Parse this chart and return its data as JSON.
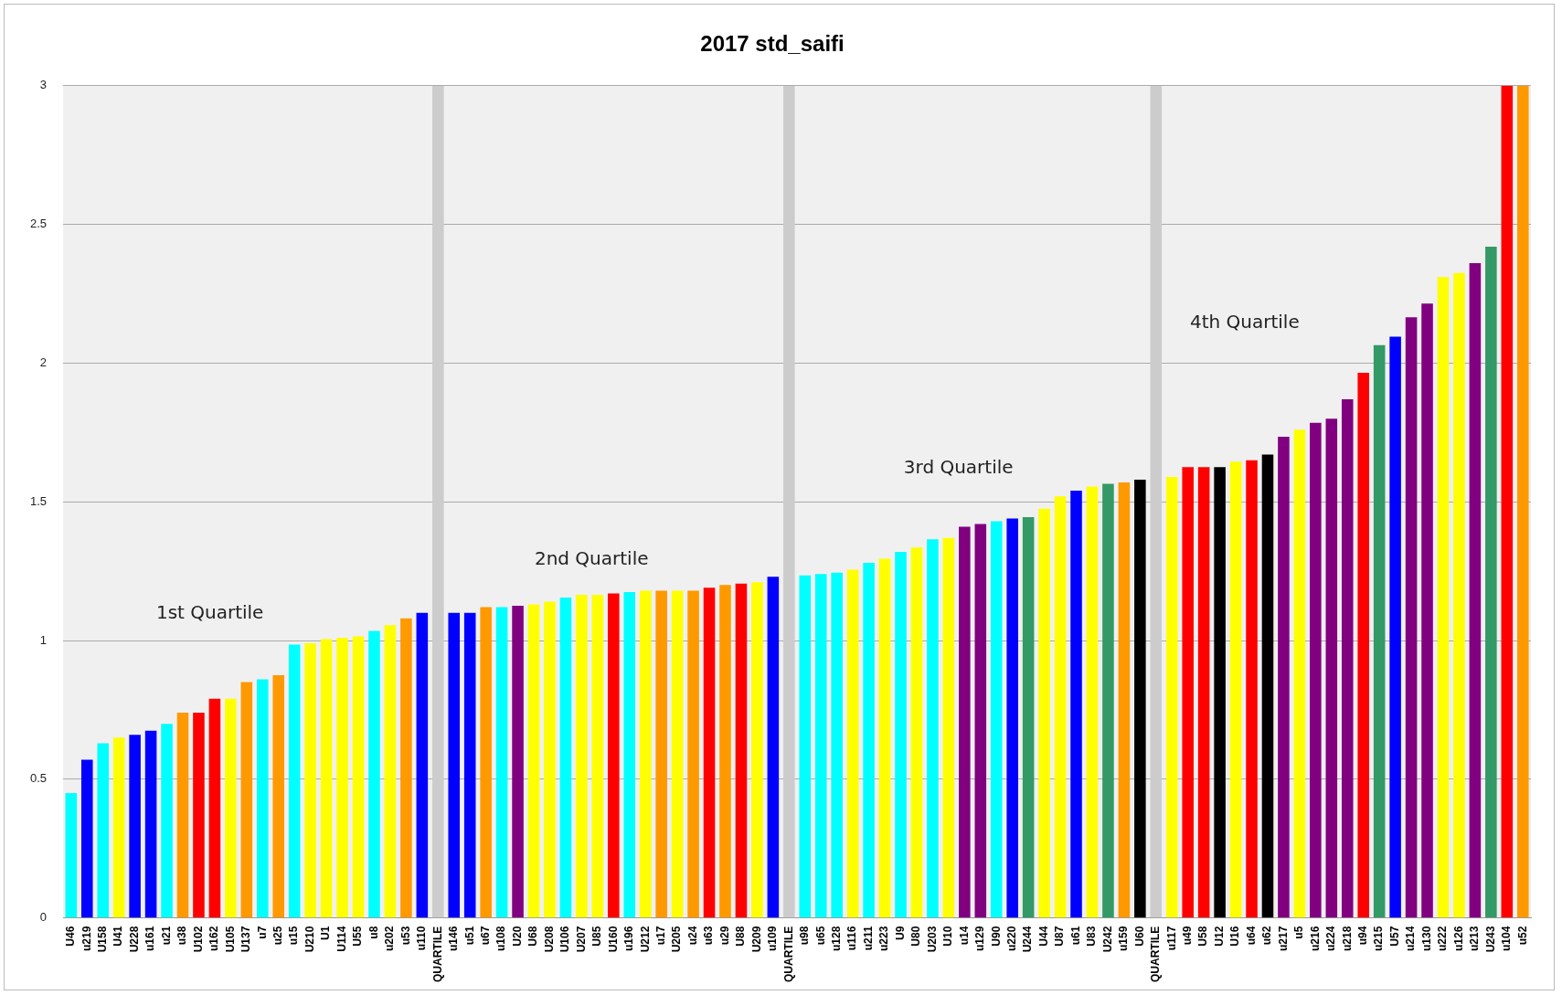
{
  "chart_data": {
    "type": "bar",
    "title": "2017 std_saifi",
    "categories": [
      "U46",
      "u219",
      "U158",
      "U41",
      "U228",
      "u161",
      "u21",
      "u38",
      "U102",
      "u162",
      "U105",
      "U137",
      "u7",
      "u25",
      "u15",
      "U210",
      "U1",
      "U114",
      "U55",
      "u8",
      "u202",
      "u53",
      "u110",
      "QUARTILE",
      "u146",
      "u51",
      "u67",
      "u108",
      "U20",
      "U68",
      "U208",
      "U106",
      "U207",
      "U85",
      "U160",
      "u196",
      "U212",
      "u17",
      "U205",
      "u24",
      "u63",
      "u29",
      "U88",
      "U209",
      "u109",
      "QUARTILE",
      "u98",
      "u65",
      "u128",
      "u116",
      "u211",
      "u223",
      "U9",
      "U80",
      "U203",
      "U10",
      "u14",
      "u129",
      "U90",
      "u220",
      "U244",
      "U44",
      "U87",
      "u61",
      "U83",
      "U242",
      "u159",
      "U60",
      "QUARTILE",
      "u117",
      "u49",
      "U58",
      "U12",
      "U16",
      "u64",
      "u62",
      "u217",
      "u5",
      "u216",
      "u224",
      "u218",
      "u94",
      "u215",
      "U57",
      "u214",
      "u130",
      "u222",
      "u126",
      "u213",
      "U243",
      "u104",
      "u52"
    ],
    "values": [
      0.45,
      0.57,
      0.63,
      0.65,
      0.66,
      0.675,
      0.7,
      0.74,
      0.74,
      0.79,
      0.79,
      0.85,
      0.86,
      0.875,
      0.985,
      0.99,
      1.005,
      1.01,
      1.015,
      1.035,
      1.055,
      1.08,
      1.1,
      3,
      1.1,
      1.1,
      1.12,
      1.12,
      1.125,
      1.13,
      1.14,
      1.155,
      1.165,
      1.165,
      1.17,
      1.175,
      1.18,
      1.18,
      1.18,
      1.18,
      1.19,
      1.2,
      1.205,
      1.21,
      1.23,
      3,
      1.235,
      1.24,
      1.245,
      1.255,
      1.28,
      1.295,
      1.32,
      1.335,
      1.365,
      1.37,
      1.41,
      1.42,
      1.43,
      1.44,
      1.445,
      1.475,
      1.52,
      1.54,
      1.555,
      1.565,
      1.57,
      1.58,
      3,
      1.59,
      1.625,
      1.625,
      1.625,
      1.645,
      1.65,
      1.67,
      1.735,
      1.76,
      1.785,
      1.8,
      1.87,
      1.965,
      2.065,
      2.095,
      2.165,
      2.215,
      2.31,
      2.325,
      2.36,
      2.42,
      3,
      3
    ],
    "colors": [
      "#00ffff",
      "#0000ff",
      "#00ffff",
      "#ffff00",
      "#0000ff",
      "#0000ff",
      "#00ffff",
      "#ff9900",
      "#ff0000",
      "#ff0000",
      "#ffff00",
      "#ff9900",
      "#00ffff",
      "#ff9900",
      "#00ffff",
      "#ffff00",
      "#ffff00",
      "#ffff00",
      "#ffff00",
      "#00ffff",
      "#ffff00",
      "#ff9900",
      "#0000ff",
      "#cccccc",
      "#0000ff",
      "#0000ff",
      "#ff9900",
      "#00ffff",
      "#800080",
      "#ffff00",
      "#ffff00",
      "#00ffff",
      "#ffff00",
      "#ffff00",
      "#ff0000",
      "#00ffff",
      "#ffff00",
      "#ff9900",
      "#ffff00",
      "#ff9900",
      "#ff0000",
      "#ff9900",
      "#ff0000",
      "#ffff00",
      "#0000ff",
      "#cccccc",
      "#00ffff",
      "#00ffff",
      "#00ffff",
      "#ffff00",
      "#00ffff",
      "#ffff00",
      "#00ffff",
      "#ffff00",
      "#00ffff",
      "#ffff00",
      "#800080",
      "#800080",
      "#00ffff",
      "#0000ff",
      "#339966",
      "#ffff00",
      "#ffff00",
      "#0000ff",
      "#ffff00",
      "#339966",
      "#ff9900",
      "#000000",
      "#cccccc",
      "#ffff00",
      "#ff0000",
      "#ff0000",
      "#000000",
      "#ffff00",
      "#ff0000",
      "#000000",
      "#800080",
      "#ffff00",
      "#800080",
      "#800080",
      "#800080",
      "#ff0000",
      "#339966",
      "#0000ff",
      "#800080",
      "#800080",
      "#ffff00",
      "#ffff00",
      "#800080",
      "#339966",
      "#ff0000",
      "#ff9900"
    ],
    "ylim": [
      0,
      3
    ],
    "yticks": [
      0,
      0.5,
      1,
      1.5,
      2,
      2.5,
      3
    ],
    "grid": "y",
    "legend": false,
    "annotations": [
      "1st Quartile",
      "2nd Quartile",
      "3rd Quartile",
      "4th Quartile"
    ]
  }
}
